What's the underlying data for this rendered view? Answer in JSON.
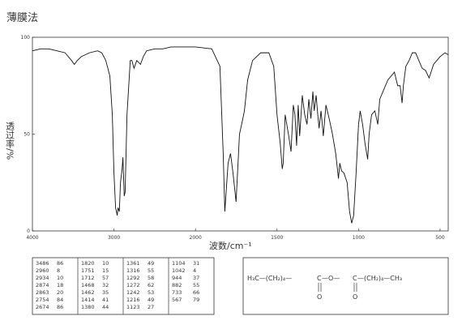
{
  "chart_data": {
    "type": "line",
    "title": "薄膜法",
    "x_label": "波数/cm⁻¹",
    "y_label": "透过率/%",
    "xlim": [
      4000,
      450
    ],
    "x_scale_break": 2000,
    "ylim": [
      0,
      100
    ],
    "xticks": [
      4000,
      3000,
      2000,
      1500,
      1000,
      500
    ],
    "yticks": [
      0,
      50,
      100
    ],
    "grid": false,
    "x": [
      4000,
      3900,
      3800,
      3700,
      3600,
      3520,
      3486,
      3450,
      3400,
      3300,
      3200,
      3150,
      3100,
      3050,
      3020,
      3000,
      2980,
      2960,
      2950,
      2934,
      2920,
      2900,
      2890,
      2874,
      2863,
      2840,
      2800,
      2780,
      2754,
      2720,
      2674,
      2640,
      2600,
      2500,
      2400,
      2300,
      2200,
      2100,
      2000,
      1900,
      1850,
      1830,
      1820,
      1800,
      1785,
      1770,
      1751,
      1730,
      1712,
      1700,
      1680,
      1650,
      1600,
      1550,
      1520,
      1500,
      1480,
      1468,
      1462,
      1450,
      1430,
      1414,
      1400,
      1390,
      1380,
      1370,
      1361,
      1345,
      1330,
      1316,
      1305,
      1292,
      1280,
      1272,
      1260,
      1250,
      1242,
      1230,
      1216,
      1200,
      1180,
      1160,
      1140,
      1123,
      1115,
      1104,
      1090,
      1070,
      1055,
      1042,
      1030,
      1015,
      1000,
      990,
      975,
      960,
      944,
      935,
      920,
      900,
      882,
      870,
      850,
      820,
      800,
      780,
      760,
      745,
      733,
      725,
      710,
      690,
      670,
      650,
      630,
      610,
      590,
      567,
      540,
      500,
      470,
      450
    ],
    "series": [
      {
        "name": "spectrum",
        "color": "#111111",
        "values": [
          93,
          94,
          94,
          93,
          92,
          88,
          86,
          88,
          90,
          92,
          93,
          92,
          88,
          80,
          60,
          30,
          12,
          8,
          12,
          10,
          25,
          32,
          38,
          18,
          20,
          60,
          88,
          88,
          84,
          88,
          86,
          90,
          93,
          94,
          94,
          95,
          95,
          95,
          95,
          94,
          85,
          40,
          10,
          35,
          40,
          30,
          15,
          50,
          57,
          62,
          78,
          88,
          92,
          92,
          85,
          60,
          45,
          32,
          35,
          60,
          50,
          41,
          65,
          60,
          44,
          65,
          49,
          70,
          60,
          55,
          68,
          58,
          72,
          62,
          70,
          60,
          53,
          62,
          49,
          65,
          58,
          50,
          40,
          27,
          35,
          31,
          30,
          25,
          10,
          4,
          8,
          30,
          55,
          62,
          55,
          45,
          37,
          50,
          60,
          62,
          55,
          68,
          72,
          78,
          80,
          82,
          75,
          75,
          66,
          75,
          85,
          88,
          92,
          92,
          88,
          84,
          83,
          79,
          86,
          90,
          92,
          91
        ]
      }
    ]
  },
  "peak_table": {
    "rows": [
      [
        3486,
        86,
        1820,
        10,
        1361,
        49,
        1104,
        31
      ],
      [
        2960,
        8,
        1751,
        15,
        1316,
        55,
        1042,
        4
      ],
      [
        2934,
        10,
        1712,
        57,
        1292,
        58,
        944,
        37
      ],
      [
        2874,
        18,
        1468,
        32,
        1272,
        62,
        882,
        55
      ],
      [
        2863,
        20,
        1462,
        35,
        1242,
        53,
        733,
        66
      ],
      [
        2754,
        84,
        1414,
        41,
        1216,
        49,
        567,
        79
      ],
      [
        2674,
        86,
        1380,
        44,
        1123,
        27
      ]
    ]
  },
  "formula": {
    "segments": [
      "H₃C—(CH₂)₄—",
      "C",
      "—O—",
      "C",
      "—(CH₂)₄—CH₃"
    ],
    "carbonyl": [
      "O",
      "O"
    ]
  }
}
